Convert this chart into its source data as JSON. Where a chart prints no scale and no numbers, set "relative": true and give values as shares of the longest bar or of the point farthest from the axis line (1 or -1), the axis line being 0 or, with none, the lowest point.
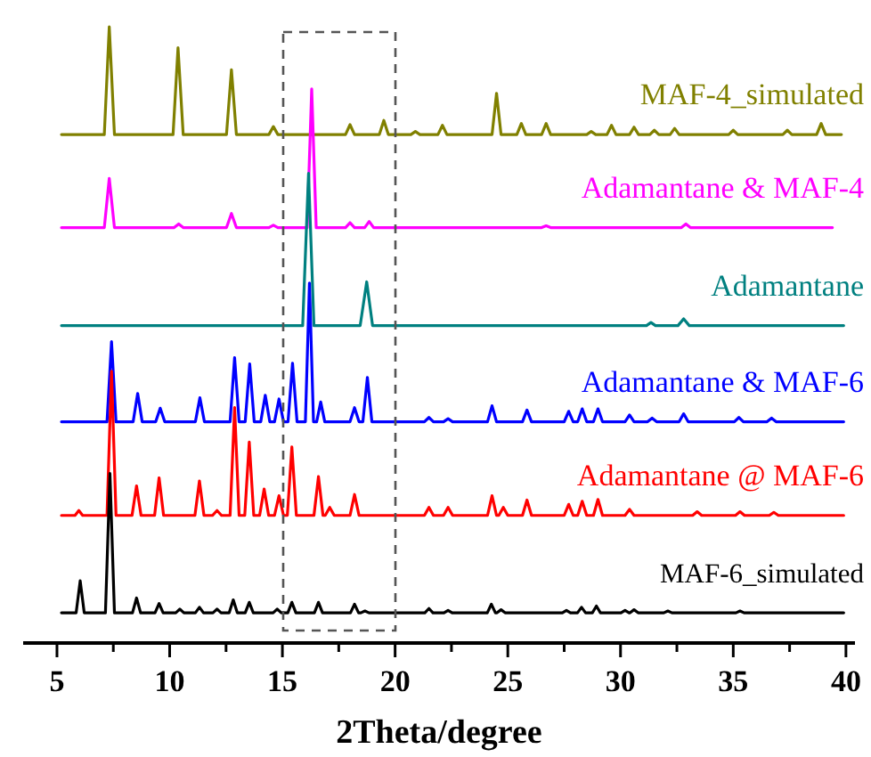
{
  "chart_data": {
    "type": "line",
    "relative": true,
    "xlabel": "2Theta/degree",
    "xlim": [
      3.5,
      40.4
    ],
    "xticks": [
      5,
      {
        "value": 7.5,
        "label": null
      },
      10,
      {
        "value": 12.5,
        "label": null
      },
      15,
      {
        "value": 17.5,
        "label": null
      },
      20,
      {
        "value": 22.5,
        "label": null
      },
      25,
      {
        "value": 27.5,
        "label": null
      },
      30,
      {
        "value": 32.5,
        "label": null
      },
      35,
      {
        "value": 37.5,
        "label": null
      },
      40
    ],
    "grid": false,
    "legend": false,
    "line_style": "solid",
    "series": [
      {
        "name": "MAF-4_simulated",
        "color": "#808000",
        "x": [
          5.2,
          7.1,
          7.32,
          7.55,
          10.15,
          10.37,
          10.6,
          12.52,
          12.74,
          12.96,
          14.4,
          14.6,
          14.8,
          17.8,
          18.0,
          18.2,
          19.3,
          19.5,
          19.7,
          20.7,
          20.9,
          21.1,
          21.9,
          22.1,
          22.3,
          24.3,
          24.5,
          24.7,
          25.4,
          25.6,
          25.8,
          26.5,
          26.7,
          26.9,
          28.5,
          28.7,
          28.9,
          29.4,
          29.6,
          29.8,
          30.4,
          30.6,
          30.8,
          31.3,
          31.5,
          31.7,
          32.2,
          32.4,
          32.6,
          34.8,
          35.0,
          35.2,
          37.2,
          37.4,
          37.6,
          38.7,
          38.9,
          39.1,
          39.8
        ],
        "values": [
          0.825,
          0.825,
          1.0,
          0.825,
          0.825,
          0.966,
          0.825,
          0.825,
          0.93,
          0.825,
          0.825,
          0.838,
          0.825,
          0.825,
          0.841,
          0.825,
          0.825,
          0.848,
          0.825,
          0.825,
          0.83,
          0.825,
          0.825,
          0.84,
          0.825,
          0.825,
          0.892,
          0.825,
          0.825,
          0.843,
          0.825,
          0.825,
          0.843,
          0.825,
          0.825,
          0.83,
          0.825,
          0.825,
          0.84,
          0.825,
          0.825,
          0.837,
          0.825,
          0.825,
          0.832,
          0.825,
          0.825,
          0.835,
          0.825,
          0.825,
          0.832,
          0.825,
          0.825,
          0.832,
          0.825,
          0.825,
          0.843,
          0.825,
          0.825
        ]
      },
      {
        "name": "Adamantane & MAF-4",
        "color": "#ff00ff",
        "x": [
          5.2,
          7.1,
          7.32,
          7.55,
          10.2,
          10.4,
          10.6,
          12.52,
          12.74,
          12.96,
          14.4,
          14.6,
          14.8,
          16.1,
          16.3,
          16.5,
          17.8,
          18.0,
          18.2,
          18.65,
          18.85,
          19.05,
          26.5,
          26.7,
          26.9,
          32.7,
          32.9,
          33.1,
          39.4
        ],
        "values": [
          0.674,
          0.674,
          0.754,
          0.674,
          0.674,
          0.68,
          0.674,
          0.674,
          0.697,
          0.674,
          0.674,
          0.678,
          0.674,
          0.674,
          0.899,
          0.674,
          0.674,
          0.682,
          0.674,
          0.674,
          0.684,
          0.674,
          0.674,
          0.677,
          0.674,
          0.674,
          0.68,
          0.674,
          0.674
        ]
      },
      {
        "name": "Adamantane",
        "color": "#008080",
        "x": [
          5.2,
          15.9,
          16.16,
          16.4,
          18.45,
          18.74,
          19.0,
          31.15,
          31.35,
          31.55,
          32.55,
          32.8,
          33.05,
          39.9
        ],
        "values": [
          0.515,
          0.515,
          0.762,
          0.515,
          0.515,
          0.586,
          0.515,
          0.515,
          0.52,
          0.515,
          0.515,
          0.526,
          0.515,
          0.515
        ]
      },
      {
        "name": "Adamantane & MAF-6",
        "color": "#0000ff",
        "x": [
          5.2,
          7.22,
          7.42,
          7.62,
          8.38,
          8.58,
          8.78,
          9.38,
          9.58,
          9.78,
          11.14,
          11.34,
          11.54,
          12.68,
          12.88,
          13.08,
          13.35,
          13.55,
          13.75,
          14.04,
          14.24,
          14.44,
          14.65,
          14.85,
          15.05,
          15.25,
          15.45,
          15.65,
          16.02,
          16.2,
          16.38,
          16.52,
          16.7,
          16.88,
          18.0,
          18.2,
          18.4,
          18.57,
          18.77,
          18.97,
          21.3,
          21.5,
          21.7,
          22.15,
          22.35,
          22.55,
          24.1,
          24.3,
          24.5,
          25.65,
          25.85,
          26.05,
          27.5,
          27.7,
          27.9,
          28.1,
          28.3,
          28.5,
          28.8,
          29.0,
          29.2,
          30.2,
          30.4,
          30.6,
          31.2,
          31.4,
          31.6,
          32.6,
          32.8,
          33.0,
          35.05,
          35.25,
          35.45,
          36.5,
          36.7,
          36.9,
          39.9
        ],
        "values": [
          0.359,
          0.359,
          0.489,
          0.359,
          0.359,
          0.405,
          0.359,
          0.359,
          0.381,
          0.359,
          0.359,
          0.398,
          0.359,
          0.359,
          0.463,
          0.359,
          0.359,
          0.453,
          0.359,
          0.359,
          0.402,
          0.359,
          0.359,
          0.396,
          0.359,
          0.359,
          0.454,
          0.359,
          0.359,
          0.584,
          0.359,
          0.359,
          0.391,
          0.359,
          0.359,
          0.382,
          0.359,
          0.359,
          0.431,
          0.359,
          0.359,
          0.366,
          0.359,
          0.359,
          0.364,
          0.359,
          0.359,
          0.385,
          0.359,
          0.359,
          0.378,
          0.359,
          0.359,
          0.376,
          0.359,
          0.359,
          0.38,
          0.359,
          0.359,
          0.38,
          0.359,
          0.359,
          0.37,
          0.359,
          0.359,
          0.365,
          0.359,
          0.359,
          0.372,
          0.359,
          0.359,
          0.366,
          0.359,
          0.359,
          0.365,
          0.359,
          0.359
        ]
      },
      {
        "name": "Adamantane @ MAF-6",
        "color": "#ff0000",
        "x": [
          5.2,
          5.8,
          5.97,
          6.14,
          7.22,
          7.42,
          7.62,
          8.33,
          8.53,
          8.73,
          9.33,
          9.53,
          9.73,
          11.12,
          11.32,
          11.52,
          11.9,
          12.1,
          12.3,
          12.68,
          12.88,
          13.08,
          13.33,
          13.53,
          13.73,
          13.99,
          14.19,
          14.39,
          14.65,
          14.85,
          15.05,
          15.22,
          15.42,
          15.62,
          16.4,
          16.6,
          16.8,
          16.9,
          17.1,
          17.3,
          18.0,
          18.2,
          18.4,
          21.3,
          21.5,
          21.7,
          22.15,
          22.35,
          22.55,
          24.1,
          24.3,
          24.5,
          24.6,
          24.8,
          25.0,
          25.65,
          25.85,
          26.05,
          27.5,
          27.7,
          27.9,
          28.1,
          28.3,
          28.5,
          28.8,
          29.0,
          29.2,
          30.2,
          30.4,
          30.6,
          33.2,
          33.4,
          33.6,
          35.1,
          35.3,
          35.5,
          36.6,
          36.8,
          37.0,
          39.9
        ],
        "values": [
          0.207,
          0.207,
          0.215,
          0.207,
          0.207,
          0.441,
          0.207,
          0.207,
          0.255,
          0.207,
          0.207,
          0.268,
          0.207,
          0.207,
          0.263,
          0.207,
          0.207,
          0.215,
          0.207,
          0.207,
          0.382,
          0.207,
          0.207,
          0.326,
          0.207,
          0.207,
          0.25,
          0.207,
          0.207,
          0.239,
          0.207,
          0.207,
          0.318,
          0.207,
          0.207,
          0.27,
          0.207,
          0.207,
          0.22,
          0.207,
          0.207,
          0.241,
          0.207,
          0.207,
          0.22,
          0.207,
          0.207,
          0.22,
          0.207,
          0.207,
          0.239,
          0.207,
          0.207,
          0.22,
          0.207,
          0.207,
          0.232,
          0.207,
          0.207,
          0.225,
          0.207,
          0.207,
          0.23,
          0.207,
          0.207,
          0.233,
          0.207,
          0.207,
          0.217,
          0.207,
          0.207,
          0.213,
          0.207,
          0.207,
          0.213,
          0.207,
          0.207,
          0.212,
          0.207,
          0.207
        ]
      },
      {
        "name": "MAF-6_simulated",
        "color": "#000000",
        "x": [
          5.2,
          5.85,
          6.03,
          6.21,
          7.15,
          7.35,
          7.55,
          8.35,
          8.53,
          8.71,
          9.35,
          9.53,
          9.71,
          10.27,
          10.45,
          10.63,
          11.14,
          11.32,
          11.5,
          11.92,
          12.1,
          12.28,
          12.64,
          12.82,
          13.0,
          13.35,
          13.53,
          13.71,
          14.59,
          14.77,
          14.95,
          15.24,
          15.42,
          15.6,
          16.42,
          16.6,
          16.78,
          18.02,
          18.2,
          18.38,
          18.48,
          18.66,
          18.84,
          21.32,
          21.5,
          21.68,
          22.17,
          22.35,
          22.53,
          24.09,
          24.27,
          24.45,
          24.52,
          24.7,
          24.88,
          27.42,
          27.6,
          27.78,
          28.09,
          28.27,
          28.45,
          28.75,
          28.93,
          29.11,
          30.02,
          30.2,
          30.38,
          30.42,
          30.6,
          30.78,
          31.92,
          32.1,
          32.28,
          35.12,
          35.3,
          35.48,
          39.9
        ],
        "values": [
          0.049,
          0.049,
          0.101,
          0.049,
          0.049,
          0.275,
          0.049,
          0.049,
          0.073,
          0.049,
          0.049,
          0.064,
          0.049,
          0.049,
          0.055,
          0.049,
          0.049,
          0.058,
          0.049,
          0.049,
          0.055,
          0.049,
          0.049,
          0.07,
          0.049,
          0.049,
          0.066,
          0.049,
          0.049,
          0.055,
          0.049,
          0.049,
          0.066,
          0.049,
          0.049,
          0.066,
          0.049,
          0.049,
          0.063,
          0.049,
          0.049,
          0.052,
          0.049,
          0.049,
          0.056,
          0.049,
          0.049,
          0.053,
          0.049,
          0.049,
          0.063,
          0.049,
          0.049,
          0.054,
          0.049,
          0.049,
          0.053,
          0.049,
          0.049,
          0.058,
          0.049,
          0.049,
          0.06,
          0.049,
          0.049,
          0.053,
          0.049,
          0.049,
          0.054,
          0.049,
          0.049,
          0.052,
          0.049,
          0.049,
          0.052,
          0.049,
          0.049
        ]
      }
    ]
  }
}
